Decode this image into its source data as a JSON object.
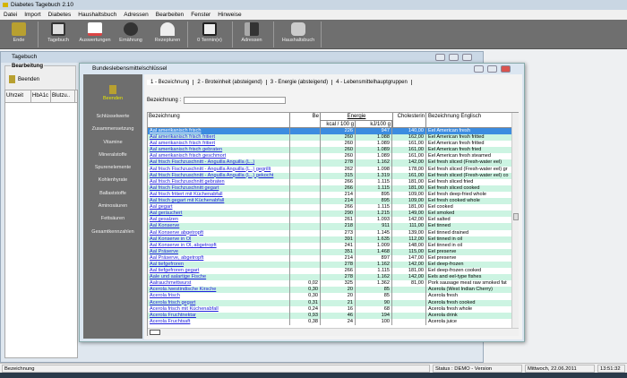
{
  "app": {
    "title": "Diabetes Tagebuch 2.10"
  },
  "menu": [
    "Datei",
    "Import",
    "Diabetes",
    "Haushaltsbuch",
    "Adressen",
    "Bearbeiten",
    "Fenster",
    "Hinweise"
  ],
  "toolbar": [
    {
      "label": "Ende",
      "icon": "exit-door-icon"
    },
    {
      "label": "Tagebuch",
      "icon": "book-icon"
    },
    {
      "label": "Auswertungen",
      "icon": "chart-icon"
    },
    {
      "label": "Ernährung",
      "icon": "apple-icon"
    },
    {
      "label": "Rezepturen",
      "icon": "cloche-icon"
    },
    {
      "label": "0 Termin(e)",
      "icon": "calendar-icon"
    },
    {
      "label": "Adressen",
      "icon": "address-book-icon"
    },
    {
      "label": "Haushaltsbuch",
      "icon": "coins-icon"
    }
  ],
  "tagebuch": {
    "title": "Tagebuch",
    "group": "Bearbeitung",
    "close_label": "Beenden",
    "columns": [
      "Uhrzeit",
      "HbA1c",
      "Blutzu.."
    ]
  },
  "dialog": {
    "title": "Bundeslebensmittelschlüssel",
    "close_label": "Beenden",
    "side_items": [
      "Schlüsselwerte",
      "Zusammensetzung",
      "Vitamine",
      "Mineralstoffe",
      "Spurenelemente",
      "Kohlenhyrate",
      "Ballaststoffe",
      "Aminosäuren",
      "Fettsäuren",
      "Gesamtkennzahlen"
    ],
    "tabs": [
      "1 - Bezeichnung",
      "2 - Broteinheit (absteigend)",
      "3 - Energie (absteigend)",
      "4 - Lebensmittelhauptgruppen"
    ],
    "search_label": "Bezeichnung :",
    "search_value": "",
    "headers": {
      "name": "Bezeichnung",
      "be": "Be",
      "energy": "Energie",
      "kcal": "kcal / 100 g",
      "kj": "kJ/100 g",
      "chol": "Cholesterin",
      "eng": "Bezeichnung Englisch"
    },
    "rows": [
      [
        "Aal amerikanisch frisch",
        "",
        "226",
        "947",
        "140,00",
        "Eel American fresh"
      ],
      [
        "Aal amerikanisch frisch fritiert",
        "",
        "260",
        "1.088",
        "162,00",
        "Eel American fresh fritted"
      ],
      [
        "Aal amerikanisch frisch fritiert",
        "",
        "260",
        "1.089",
        "161,00",
        "Eel American fresh fritted"
      ],
      [
        "Aal amerikanisch frisch gebraten",
        "",
        "260",
        "1.089",
        "161,00",
        "Eel American fresh fried"
      ],
      [
        "Aal amerikanisch frisch geschmort",
        "",
        "260",
        "1.089",
        "161,00",
        "Eel American fresh steamed"
      ],
      [
        "Aal frisch Fischzuschnitt - Anguilla Anguilla (L..)",
        "",
        "278",
        "1.162",
        "142,00",
        "Eel fresh sliced (Fresh-water eel)"
      ],
      [
        "Aal frisch Fischzuschnitt - Anguilla Anguilla (L..) gegrillt",
        "",
        "262",
        "1.098",
        "178,00",
        "Eel fresh sliced (Fresh-water eel) gr"
      ],
      [
        "Aal frisch Fischzuschnitt - Anguilla Anguilla (L..) gekocht",
        "",
        "315",
        "1.319",
        "161,00",
        "Eel fresh sliced (Fresh-water eel) co"
      ],
      [
        "Aal frisch Fischzuschnitt gebraten",
        "",
        "266",
        "1.115",
        "181,00",
        "Eel fresh sliced fried"
      ],
      [
        "Aal frisch Fischzuschnitt gegart",
        "",
        "266",
        "1.115",
        "181,00",
        "Eel fresh sliced cooked"
      ],
      [
        "Aal frisch fritiert mit Küchenabfall",
        "",
        "214",
        "895",
        "109,00",
        "Eel fresh deep-fried whole"
      ],
      [
        "Aal frisch gegart mit Küchenabfall",
        "",
        "214",
        "895",
        "109,00",
        "Eel fresh cooked whole"
      ],
      [
        "Aal gegart",
        "",
        "266",
        "1.115",
        "181,00",
        "Eel cooked"
      ],
      [
        "Aal geräuchert",
        "",
        "290",
        "1.215",
        "149,00",
        "Eel smoked"
      ],
      [
        "Aal gesalzen",
        "",
        "261",
        "1.093",
        "142,00",
        "Eel salted"
      ],
      [
        "Aal Konserve",
        "",
        "218",
        "911",
        "111,00",
        "Eel tinned"
      ],
      [
        "Aal Konserve abgetropft",
        "",
        "273",
        "1.145",
        "139,00",
        "Eel tinned drained"
      ],
      [
        "Aal Konserve in Öl",
        "",
        "391",
        "1.635",
        "112,00",
        "Eel tinned in oil"
      ],
      [
        "Aal Konserve in Öl, abgetropft",
        "",
        "241",
        "1.009",
        "148,00",
        "Eel tinned in oil"
      ],
      [
        "Aal Präserve",
        "",
        "351",
        "1.468",
        "115,00",
        "Eel preserve"
      ],
      [
        "Aal Präserve, abgetropft",
        "",
        "214",
        "897",
        "147,00",
        "Eel preserve"
      ],
      [
        "Aal tiefgefroren",
        "",
        "278",
        "1.162",
        "142,00",
        "Eel deep-frozen"
      ],
      [
        "Aal tiefgefroren gegart",
        "",
        "266",
        "1.115",
        "181,00",
        "Eel deep-frozen cooked"
      ],
      [
        "Aale und aalartige Fische",
        "",
        "278",
        "1.162",
        "142,00",
        "Eels and eel-type fishes"
      ],
      [
        "Aalrauchmettwurst",
        "0,02",
        "325",
        "1.362",
        "81,00",
        "Pork sausage meat raw smoked fat"
      ],
      [
        "Acerola /westindische Kirsche",
        "0,30",
        "20",
        "85",
        "",
        "Acerola (West Indian Cherry)"
      ],
      [
        "Acerola frisch",
        "0,30",
        "20",
        "85",
        "",
        "Acerola fresh"
      ],
      [
        "Acerola frisch gegart",
        "0,31",
        "21",
        "90",
        "",
        "Acerola fresh cooked"
      ],
      [
        "Acerola frisch mit Küchenabfall",
        "0,24",
        "16",
        "68",
        "",
        "Acerola fresh whole"
      ],
      [
        "Acerola Fruchtnektar",
        "0,93",
        "46",
        "194",
        "",
        "Acerola drink"
      ],
      [
        "Acerola Fruchtsaft",
        "0,38",
        "24",
        "100",
        "",
        "Acerola juice"
      ]
    ]
  },
  "status": {
    "field": "Bezeichnung",
    "status": "Status : DEMO - Version",
    "date": "Mittwoch, 22.06.2011",
    "time": "13:51:32"
  },
  "colors": {
    "toolbar": "#6f6f6f",
    "row_alt": "#ccf4e2",
    "selected": "#3c8ce0",
    "link": "#2222dd"
  }
}
